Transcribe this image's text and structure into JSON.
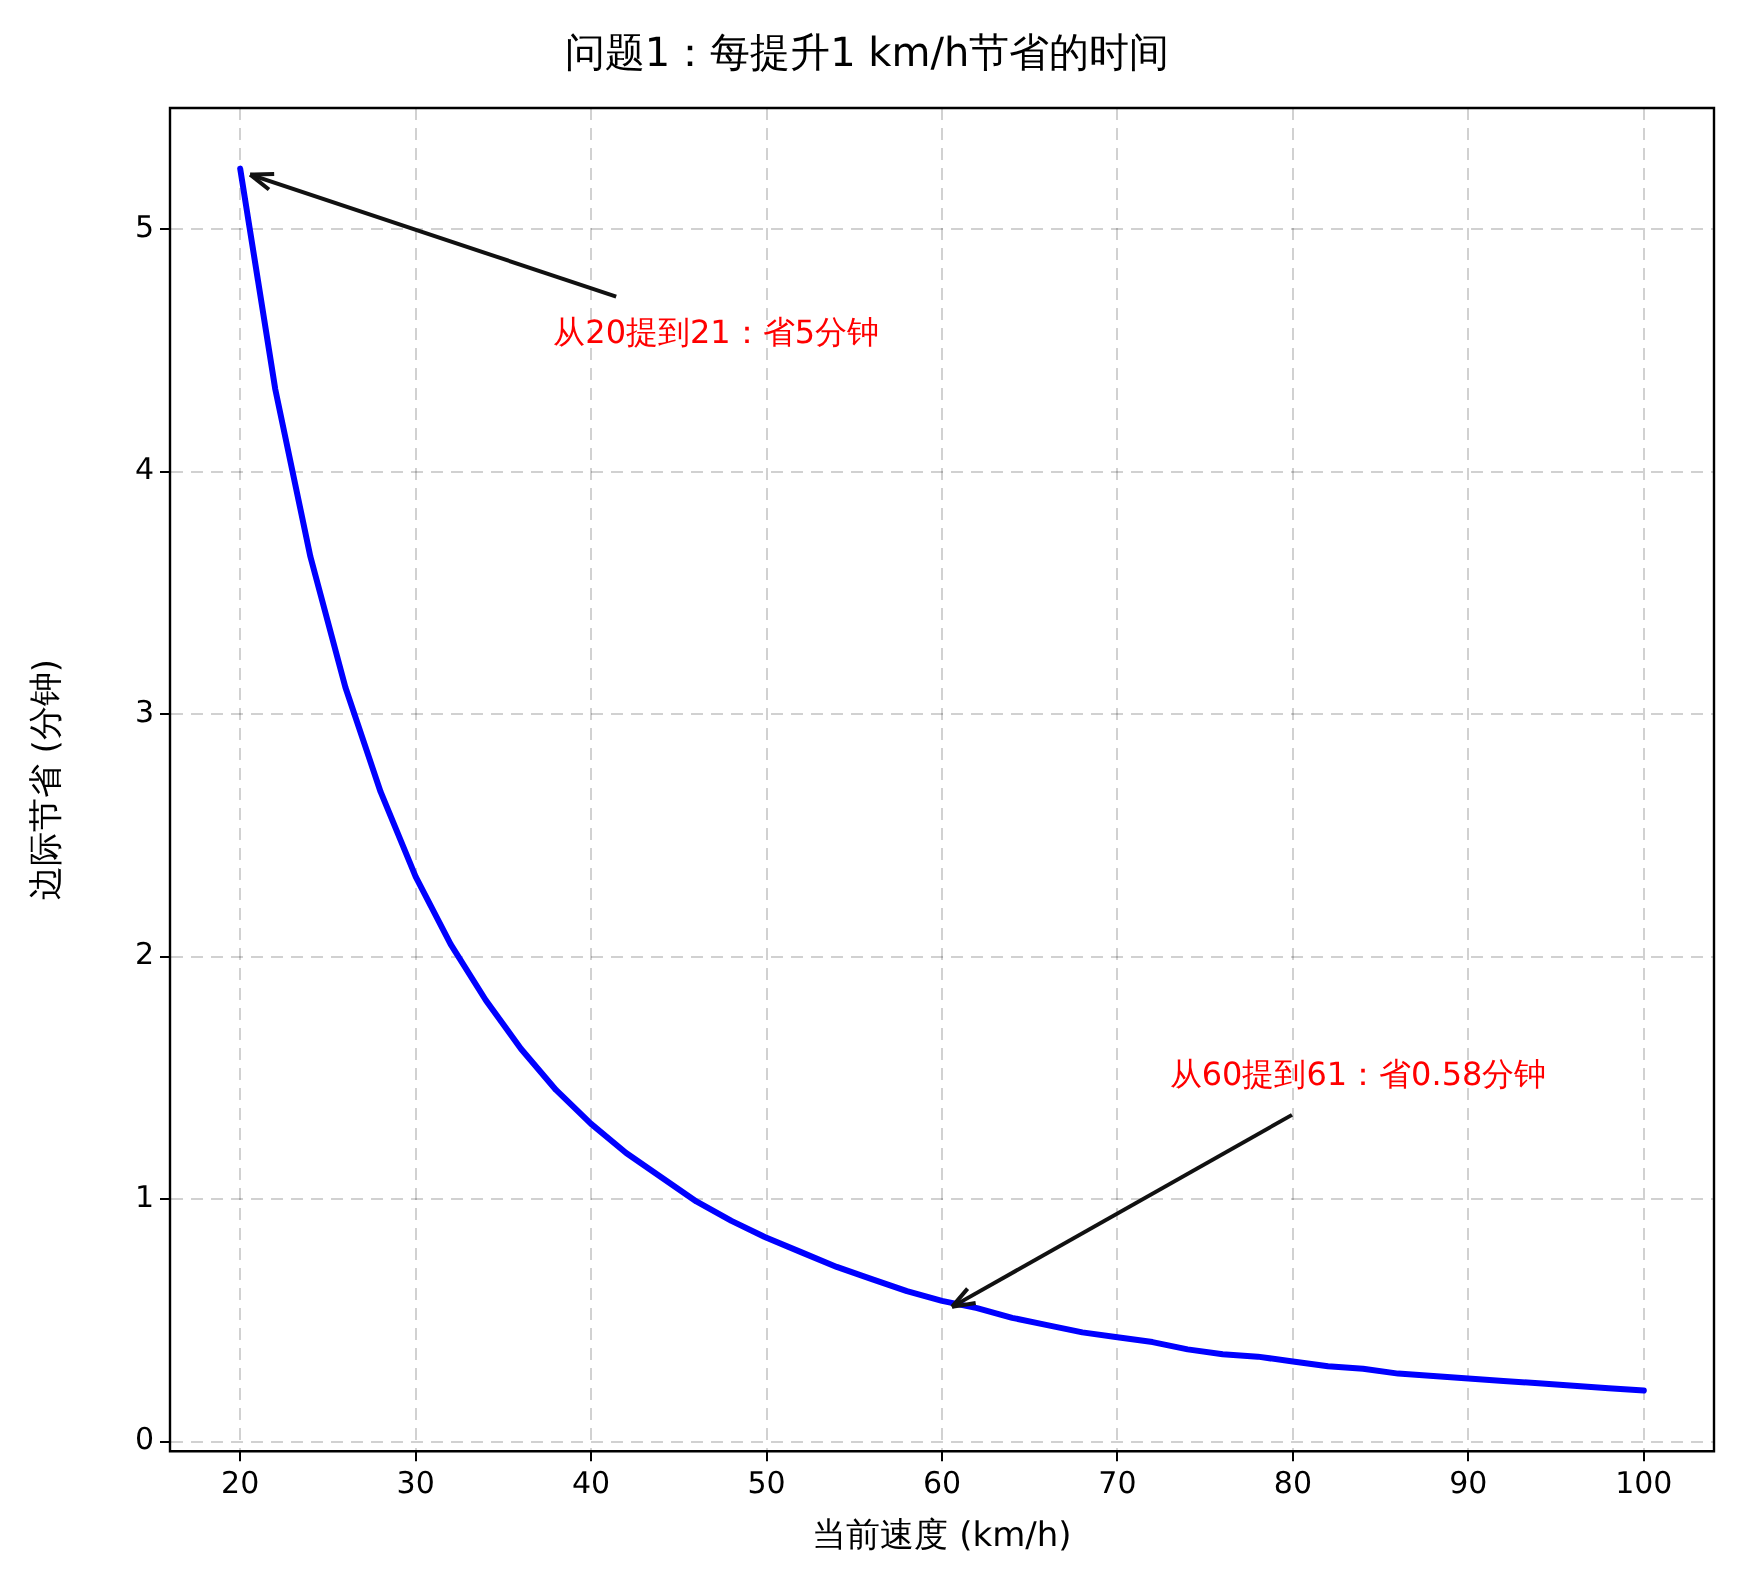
{
  "chart_data": {
    "type": "line",
    "title": "问题1：每提升1 km/h节省的时间",
    "xlabel": "当前速度 (km/h)",
    "ylabel": "边际节省 (分钟)",
    "x": [
      20,
      22,
      24,
      26,
      28,
      30,
      32,
      34,
      36,
      38,
      40,
      42,
      44,
      46,
      48,
      50,
      52,
      54,
      56,
      58,
      60,
      62,
      64,
      66,
      68,
      70,
      72,
      74,
      76,
      78,
      80,
      82,
      84,
      86,
      88,
      90,
      92,
      94,
      96,
      98,
      100
    ],
    "series": [
      {
        "color": "#0000ff",
        "values": [
          5.25,
          4.34,
          3.65,
          3.11,
          2.68,
          2.33,
          2.05,
          1.82,
          1.62,
          1.45,
          1.31,
          1.19,
          1.09,
          0.99,
          0.91,
          0.84,
          0.78,
          0.72,
          0.67,
          0.62,
          0.58,
          0.55,
          0.51,
          0.48,
          0.45,
          0.43,
          0.41,
          0.38,
          0.36,
          0.35,
          0.33,
          0.31,
          0.3,
          0.28,
          0.27,
          0.26,
          0.25,
          0.24,
          0.23,
          0.22,
          0.21
        ]
      }
    ],
    "xlim": [
      16,
      104
    ],
    "xticks": [
      20,
      30,
      40,
      50,
      60,
      70,
      80,
      90,
      100
    ],
    "ylim": [
      -0.04,
      5.5
    ],
    "yticks": [
      0,
      1,
      2,
      3,
      4,
      5
    ],
    "grid": true,
    "legend": false,
    "marker": "none",
    "line_style": "solid",
    "annotations": [
      {
        "text": "从20提到21：省5分钟",
        "x": 20,
        "y": 5.25
      },
      {
        "text": "从60提到61：省0.58分钟",
        "x": 60,
        "y": 0.58
      }
    ]
  }
}
